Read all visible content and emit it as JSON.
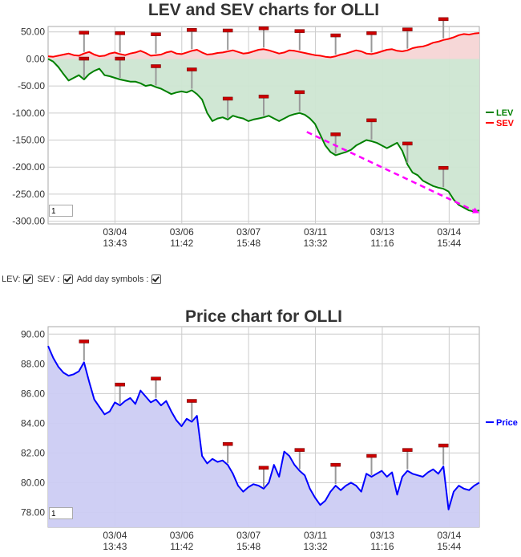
{
  "chart_data": [
    {
      "type": "area",
      "title": "LEV and SEV charts for OLLI",
      "ylim": [
        -305,
        60
      ],
      "y_ticks": [
        "50.00",
        "0.00",
        "-50.00",
        "-100.00",
        "-150.00",
        "-200.00",
        "-250.00",
        "-300.00"
      ],
      "y_tick_values": [
        50,
        0,
        -50,
        -100,
        -150,
        -200,
        -250,
        -300
      ],
      "x_ticks": [
        {
          "date": "03/04",
          "time": "13:43"
        },
        {
          "date": "03/06",
          "time": "11:42"
        },
        {
          "date": "03/07",
          "time": "15:48"
        },
        {
          "date": "03/11",
          "time": "13:32"
        },
        {
          "date": "03/13",
          "time": "11:16"
        },
        {
          "date": "03/14",
          "time": "15:44"
        }
      ],
      "grid": true,
      "legend_position": "right",
      "zoom_value": "1",
      "series": [
        {
          "name": "LEV",
          "color": "#008000",
          "fill": "#cde6d2",
          "values": [
            0,
            -5,
            -15,
            -28,
            -40,
            -35,
            -30,
            -38,
            -28,
            -22,
            -18,
            -30,
            -32,
            -35,
            -38,
            -40,
            -42,
            -42,
            -45,
            -50,
            -48,
            -52,
            -55,
            -60,
            -65,
            -62,
            -60,
            -62,
            -58,
            -65,
            -75,
            -100,
            -115,
            -110,
            -108,
            -112,
            -105,
            -108,
            -110,
            -115,
            -112,
            -110,
            -108,
            -105,
            -110,
            -115,
            -110,
            -105,
            -102,
            -100,
            -103,
            -110,
            -120,
            -140,
            -160,
            -172,
            -178,
            -175,
            -172,
            -168,
            -160,
            -155,
            -150,
            -152,
            -155,
            -160,
            -165,
            -160,
            -155,
            -170,
            -195,
            -210,
            -215,
            -225,
            -230,
            -235,
            -238,
            -240,
            -245,
            -260,
            -270,
            -275,
            -280,
            -282,
            -280
          ]
        },
        {
          "name": "SEV",
          "color": "#ff0000",
          "fill": "#f6d5d5",
          "values": [
            5,
            4,
            6,
            8,
            10,
            7,
            6,
            10,
            13,
            8,
            5,
            6,
            10,
            12,
            9,
            7,
            10,
            12,
            15,
            11,
            6,
            7,
            8,
            12,
            14,
            10,
            9,
            12,
            15,
            17,
            12,
            8,
            9,
            11,
            12,
            14,
            16,
            13,
            10,
            11,
            14,
            17,
            18,
            16,
            13,
            10,
            12,
            16,
            15,
            13,
            11,
            9,
            7,
            6,
            4,
            3,
            5,
            8,
            10,
            13,
            16,
            14,
            10,
            9,
            11,
            14,
            17,
            18,
            15,
            14,
            16,
            20,
            22,
            23,
            26,
            30,
            32,
            35,
            37,
            40,
            44,
            46,
            45,
            47,
            48
          ]
        }
      ],
      "annotations": [
        {
          "type": "trend-arrow",
          "color": "#ff00ff",
          "x0": 0.6,
          "y0": -135,
          "x1": 1.0,
          "y1": -285
        }
      ]
    },
    {
      "type": "area",
      "title": "Price chart for OLLI",
      "ylim": [
        77,
        90.5
      ],
      "y_ticks": [
        "90.00",
        "88.00",
        "86.00",
        "84.00",
        "82.00",
        "80.00",
        "78.00"
      ],
      "y_tick_values": [
        90,
        88,
        86,
        84,
        82,
        80,
        78
      ],
      "x_ticks": [
        {
          "date": "03/04",
          "time": "13:43"
        },
        {
          "date": "03/06",
          "time": "11:42"
        },
        {
          "date": "03/07",
          "time": "15:48"
        },
        {
          "date": "03/11",
          "time": "13:32"
        },
        {
          "date": "03/13",
          "time": "11:16"
        },
        {
          "date": "03/14",
          "time": "15:44"
        }
      ],
      "grid": true,
      "legend_position": "right",
      "zoom_value": "1",
      "series": [
        {
          "name": "Price",
          "color": "#0000ff",
          "fill": "#ccccf3",
          "values": [
            89.2,
            88.4,
            87.8,
            87.4,
            87.2,
            87.3,
            87.5,
            88.1,
            86.8,
            85.6,
            85.1,
            84.6,
            84.8,
            85.4,
            85.2,
            85.5,
            85.7,
            85.3,
            86.2,
            85.8,
            85.4,
            85.6,
            85.2,
            85.5,
            84.8,
            84.2,
            83.8,
            84.3,
            84.1,
            84.5,
            81.8,
            81.3,
            81.6,
            81.4,
            81.5,
            81.2,
            80.6,
            79.8,
            79.4,
            79.7,
            79.9,
            79.8,
            79.6,
            80.0,
            81.2,
            80.4,
            82.1,
            81.8,
            81.2,
            80.8,
            80.5,
            79.6,
            79.0,
            78.5,
            78.8,
            79.4,
            79.8,
            79.5,
            79.8,
            80.0,
            79.8,
            79.4,
            80.6,
            80.4,
            80.6,
            80.8,
            80.4,
            80.7,
            79.2,
            80.4,
            80.8,
            80.6,
            80.5,
            80.4,
            80.7,
            80.9,
            80.6,
            81.1,
            78.2,
            79.4,
            79.8,
            79.6,
            79.5,
            79.8,
            80.0
          ]
        }
      ]
    }
  ],
  "controls": {
    "lev_label": "LEV:",
    "sev_label": "SEV :",
    "day_symbols_label": "Add day symbols :"
  }
}
